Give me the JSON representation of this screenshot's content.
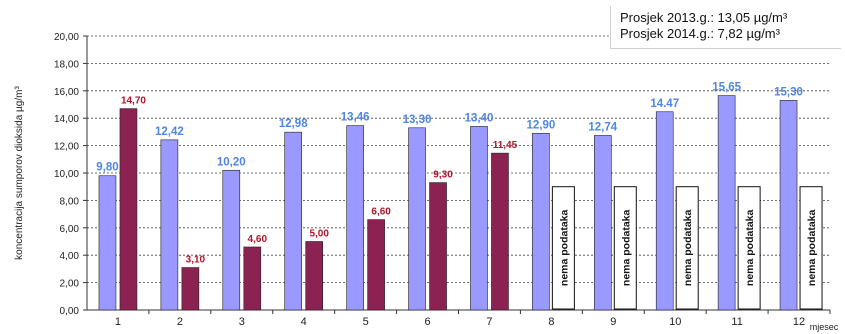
{
  "chart_data": {
    "type": "bar",
    "title": "",
    "xlabel": "mjesec",
    "ylabel": "koncentracija sumporov dioksida µg/m³",
    "ylim": [
      0,
      20
    ],
    "y_ticks": [
      "0,00",
      "2,00",
      "4,00",
      "6,00",
      "8,00",
      "10,00",
      "12,00",
      "14,00",
      "16,00",
      "18,00",
      "20,00"
    ],
    "categories": [
      "1",
      "2",
      "3",
      "4",
      "5",
      "6",
      "7",
      "8",
      "9",
      "10",
      "11",
      "12"
    ],
    "series": [
      {
        "values": [
          9.8,
          12.42,
          10.2,
          12.98,
          13.46,
          13.3,
          13.4,
          12.9,
          12.74,
          14.47,
          15.65,
          15.3
        ],
        "labels": [
          "9,80",
          "12,42",
          "10,20",
          "12,98",
          "13,46",
          "13,30",
          "13,40",
          "12,90",
          "12,74",
          "14.47",
          "15,65",
          "15,30"
        ],
        "color": "#9999ff",
        "label_color": "#4f86e6"
      },
      {
        "values": [
          14.7,
          3.1,
          4.6,
          5.0,
          6.6,
          9.3,
          11.45,
          null,
          null,
          null,
          null,
          null
        ],
        "labels": [
          "14,70",
          "3,10",
          "4,60",
          "5,00",
          "6,60",
          "9,30",
          "11,45",
          "",
          "",
          "",
          "",
          ""
        ],
        "color": "#8b2252",
        "label_color": "#b0152b"
      }
    ],
    "no_data_text": "nema podataka",
    "no_data_value": 9.0,
    "grid": true,
    "legend": {
      "position": "top-right",
      "lines": [
        "Prosjek 2013.g.: 13,05 µg/m³",
        "Prosjek 2014.g.: 7,82  µg/m³"
      ]
    }
  }
}
